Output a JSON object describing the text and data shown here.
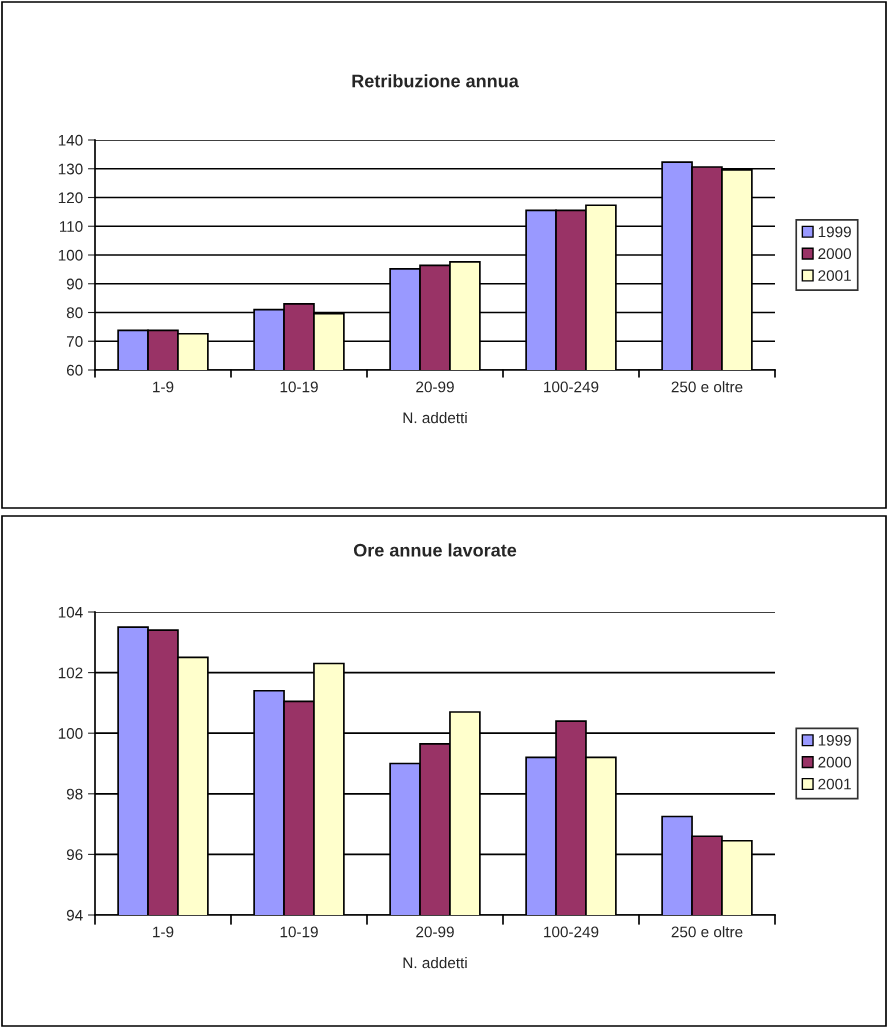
{
  "chart_data": [
    {
      "type": "bar",
      "title": "Retribuzione annua",
      "xlabel": "N. addetti",
      "categories": [
        "1-9",
        "10-19",
        "20-99",
        "100-249",
        "250 e oltre"
      ],
      "series": [
        {
          "name": "1999",
          "color": "#9999ff",
          "values": [
            73.8,
            81,
            95.2,
            115.5,
            132.3
          ]
        },
        {
          "name": "2000",
          "color": "#993366",
          "values": [
            73.8,
            83,
            96.4,
            115.5,
            130.6
          ]
        },
        {
          "name": "2001",
          "color": "#ffffcc",
          "values": [
            72.6,
            79.6,
            97.6,
            117.3,
            129.6
          ]
        }
      ],
      "ylim": [
        60,
        140
      ],
      "yticks": [
        60,
        70,
        80,
        90,
        100,
        110,
        120,
        130,
        140
      ],
      "grid": "y",
      "legend": "right"
    },
    {
      "type": "bar",
      "title": "Ore annue lavorate",
      "xlabel": "N. addetti",
      "categories": [
        "1-9",
        "10-19",
        "20-99",
        "100-249",
        "250 e oltre"
      ],
      "series": [
        {
          "name": "1999",
          "color": "#9999ff",
          "values": [
            103.5,
            101.4,
            99.0,
            99.2,
            97.25
          ]
        },
        {
          "name": "2000",
          "color": "#993366",
          "values": [
            103.4,
            101.05,
            99.65,
            100.4,
            96.6
          ]
        },
        {
          "name": "2001",
          "color": "#ffffcc",
          "values": [
            102.5,
            102.3,
            100.7,
            99.2,
            96.45
          ]
        }
      ],
      "ylim": [
        94,
        104
      ],
      "yticks": [
        94,
        96,
        98,
        100,
        102,
        104
      ],
      "grid": "y",
      "legend": "right"
    }
  ]
}
